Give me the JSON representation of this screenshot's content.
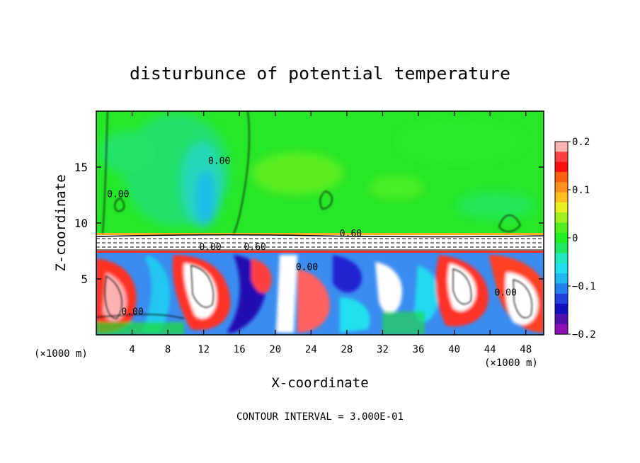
{
  "chart_data": {
    "type": "heatmap",
    "title": "disturbunce of potential temperature",
    "xlabel": "X-coordinate",
    "ylabel": "Z-coordinate",
    "x_unit": "(×1000 m)",
    "z_unit": "(×1000 m)",
    "xlim": [
      0,
      50
    ],
    "ylim": [
      0,
      20
    ],
    "x_ticks": [
      4,
      8,
      12,
      16,
      20,
      24,
      28,
      32,
      36,
      40,
      44,
      48
    ],
    "y_ticks": [
      5,
      10,
      15
    ],
    "colorbar": {
      "range": [
        -0.2,
        0.2
      ],
      "tick_labels": [
        "0.2",
        "0.1",
        "0",
        "−0.1",
        "−0.2"
      ],
      "tick_values": [
        0.2,
        0.1,
        0,
        -0.1,
        -0.2
      ],
      "colors": [
        "#ffb0b0",
        "#ff4040",
        "#ff1010",
        "#ff6010",
        "#ff9020",
        "#ffc020",
        "#e8f020",
        "#a0f020",
        "#50f020",
        "#20f020",
        "#20e860",
        "#20e8c0",
        "#20e0f0",
        "#20b8f0",
        "#2080f0",
        "#2040e0",
        "#1010c0",
        "#5010b0",
        "#9010b8"
      ]
    },
    "contour_labels": [
      {
        "text": "0.00",
        "x": 12.5,
        "z": 15.3
      },
      {
        "text": "0.00",
        "x": 1.2,
        "z": 12.3
      },
      {
        "text": "0.60",
        "x": 27.2,
        "z": 8.8
      },
      {
        "text": "0.00",
        "x": 11.5,
        "z": 7.6
      },
      {
        "text": "0.60",
        "x": 16.5,
        "z": 7.6
      },
      {
        "text": "0.00",
        "x": 2.8,
        "z": 1.8
      },
      {
        "text": "0.00",
        "x": 22.3,
        "z": 5.8
      },
      {
        "text": "0.00",
        "x": 44.5,
        "z": 3.5
      }
    ],
    "grid": false,
    "legend": "colorbar-right"
  },
  "footer": "CONTOUR INTERVAL = 3.000E-01"
}
